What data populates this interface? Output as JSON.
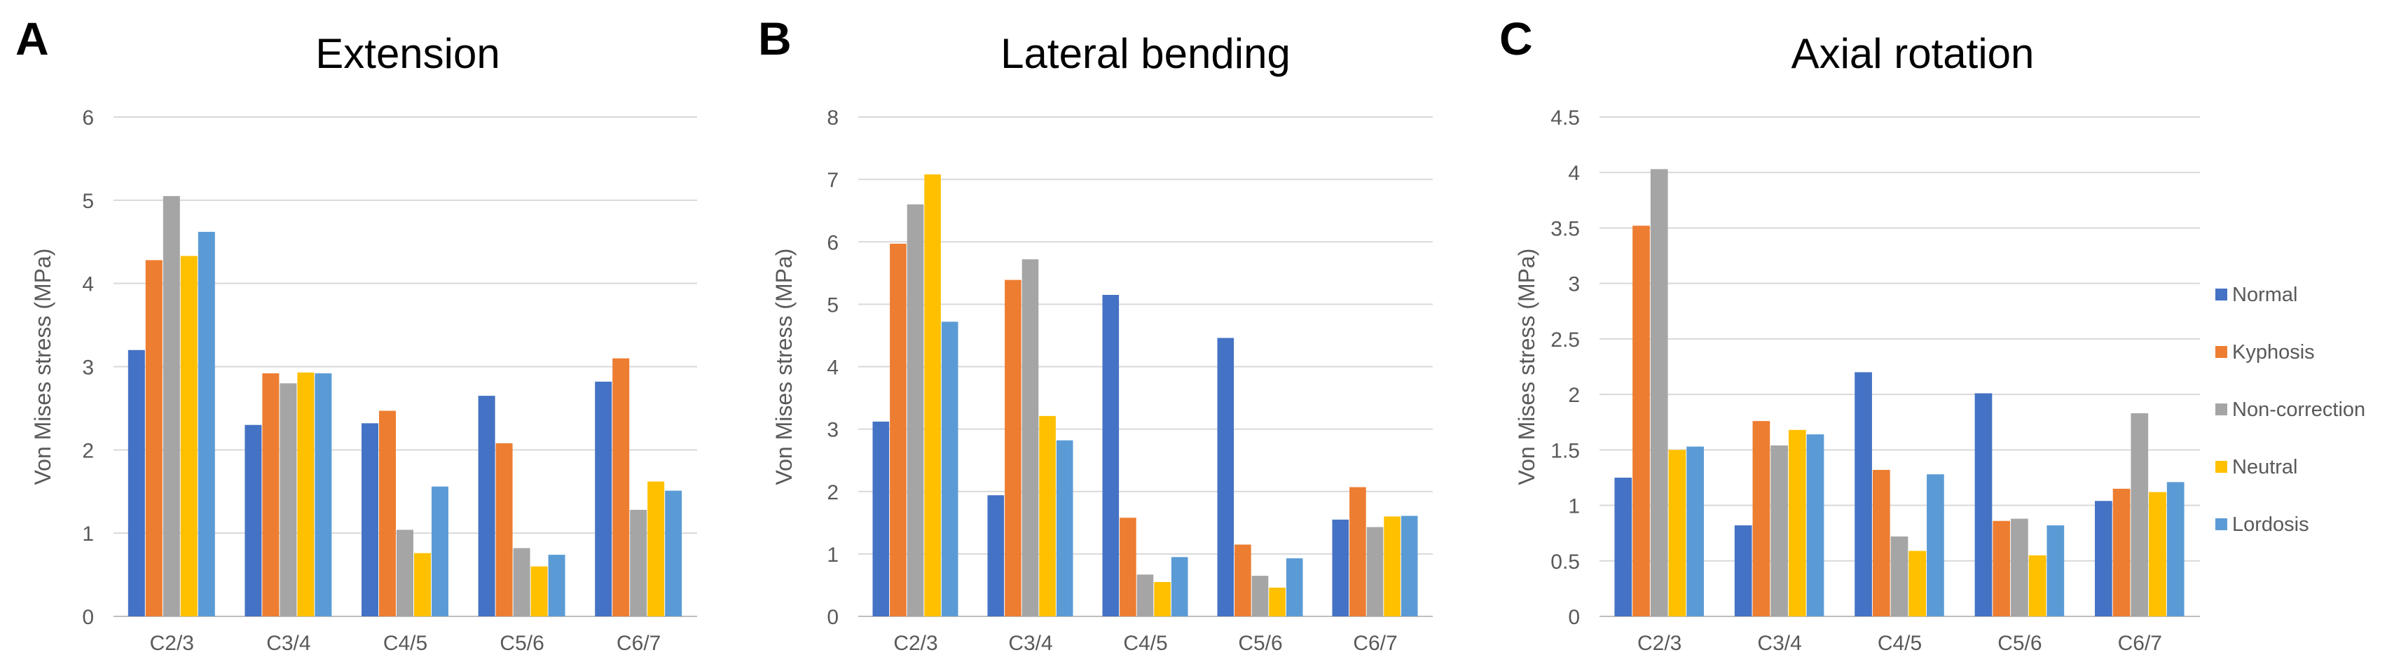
{
  "chart_data": [
    {
      "type": "bar",
      "panel": "A",
      "title": "Extension",
      "xlabel": "",
      "ylabel": "Von Mises stress (MPa)",
      "ylim": [
        0,
        6
      ],
      "yticks": [
        0,
        1,
        2,
        3,
        4,
        5,
        6
      ],
      "categories": [
        "C2/3",
        "C3/4",
        "C4/5",
        "C5/6",
        "C6/7"
      ],
      "grid": true,
      "series": [
        {
          "name": "Normal",
          "values": [
            3.2,
            2.3,
            2.32,
            2.65,
            2.82
          ]
        },
        {
          "name": "Kyphosis",
          "values": [
            4.28,
            2.92,
            2.47,
            2.08,
            3.1
          ]
        },
        {
          "name": "Non-correction",
          "values": [
            5.05,
            2.8,
            1.04,
            0.82,
            1.28
          ]
        },
        {
          "name": "Neutral",
          "values": [
            4.33,
            2.93,
            0.76,
            0.6,
            1.62
          ]
        },
        {
          "name": "Lordosis",
          "values": [
            4.62,
            2.92,
            1.56,
            0.74,
            1.51
          ]
        }
      ]
    },
    {
      "type": "bar",
      "panel": "B",
      "title": "Lateral bending",
      "xlabel": "",
      "ylabel": "Von Mises stress (MPa)",
      "ylim": [
        0,
        8
      ],
      "yticks": [
        0,
        1,
        2,
        3,
        4,
        5,
        6,
        7,
        8
      ],
      "categories": [
        "C2/3",
        "C3/4",
        "C4/5",
        "C5/6",
        "C6/7"
      ],
      "grid": true,
      "series": [
        {
          "name": "Normal",
          "values": [
            3.12,
            1.94,
            5.15,
            4.46,
            1.55
          ]
        },
        {
          "name": "Kyphosis",
          "values": [
            5.97,
            5.39,
            1.58,
            1.15,
            2.07
          ]
        },
        {
          "name": "Non-correction",
          "values": [
            6.6,
            5.72,
            0.67,
            0.65,
            1.43
          ]
        },
        {
          "name": "Neutral",
          "values": [
            7.08,
            3.21,
            0.55,
            0.46,
            1.6
          ]
        },
        {
          "name": "Lordosis",
          "values": [
            4.72,
            2.82,
            0.95,
            0.93,
            1.61
          ]
        }
      ]
    },
    {
      "type": "bar",
      "panel": "C",
      "title": "Axial rotation",
      "xlabel": "",
      "ylabel": "Von Mises stress (MPa)",
      "ylim": [
        0,
        4.5
      ],
      "yticks": [
        0,
        0.5,
        1,
        1.5,
        2,
        2.5,
        3,
        3.5,
        4,
        4.5
      ],
      "categories": [
        "C2/3",
        "C3/4",
        "C4/5",
        "C5/6",
        "C6/7"
      ],
      "grid": true,
      "legend_position": "right",
      "series": [
        {
          "name": "Normal",
          "values": [
            1.25,
            0.82,
            2.2,
            2.01,
            1.04
          ]
        },
        {
          "name": "Kyphosis",
          "values": [
            3.52,
            1.76,
            1.32,
            0.86,
            1.15
          ]
        },
        {
          "name": "Non-correction",
          "values": [
            4.03,
            1.54,
            0.72,
            0.88,
            1.83
          ]
        },
        {
          "name": "Neutral",
          "values": [
            1.5,
            1.68,
            0.59,
            0.55,
            1.12
          ]
        },
        {
          "name": "Lordosis",
          "values": [
            1.53,
            1.64,
            1.28,
            0.82,
            1.21
          ]
        }
      ]
    }
  ],
  "colors": {
    "Normal": "#4472C4",
    "Kyphosis": "#ED7D31",
    "Non-correction": "#A5A5A5",
    "Neutral": "#FFC000",
    "Lordosis": "#5B9BD5"
  }
}
